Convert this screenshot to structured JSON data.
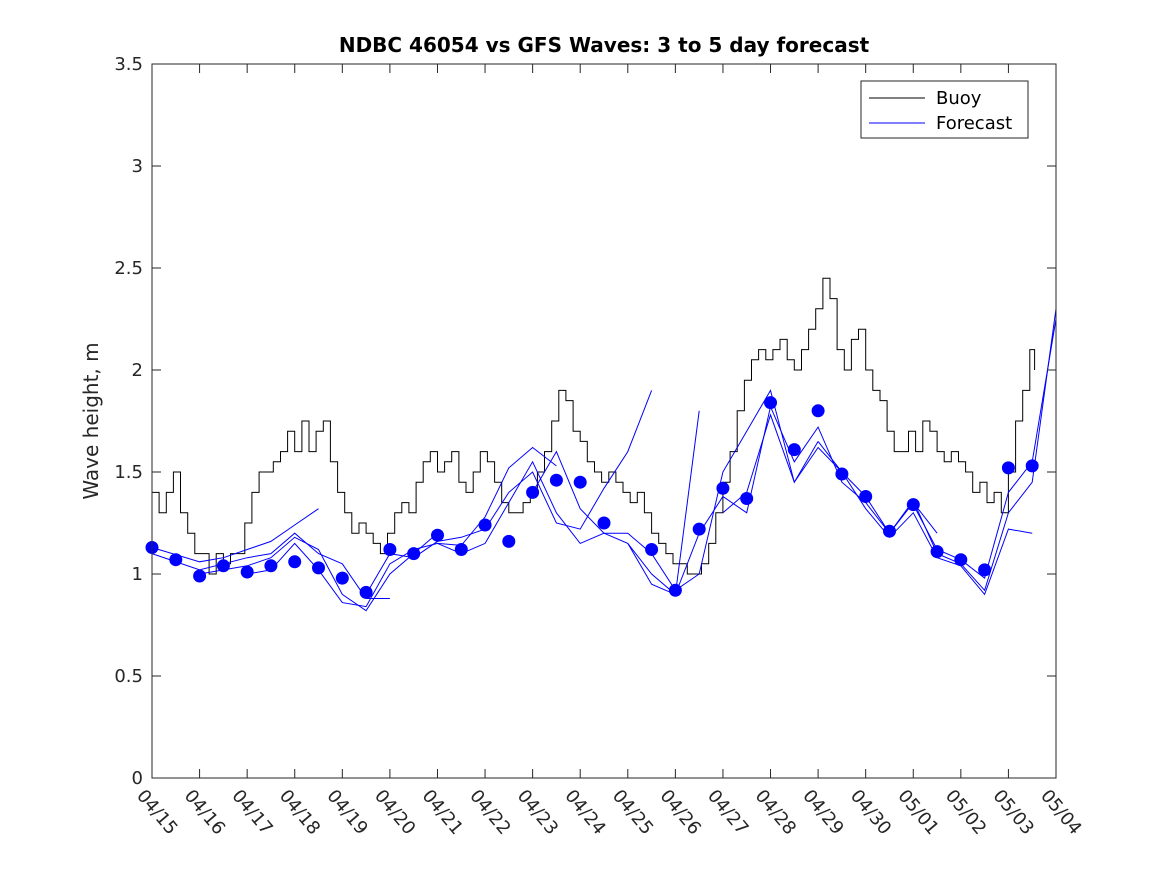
{
  "chart_data": {
    "type": "line",
    "title": "NDBC 46054 vs GFS Waves: 3 to 5 day forecast",
    "xlabel": "",
    "ylabel": "Wave height, m",
    "xlim": [
      "04/15",
      "05/04"
    ],
    "ylim": [
      0,
      3.5
    ],
    "yticks": [
      "0",
      "0.5",
      "1",
      "1.5",
      "2",
      "2.5",
      "3",
      "3.5"
    ],
    "xticks": [
      "04/15",
      "04/16",
      "04/17",
      "04/18",
      "04/19",
      "04/20",
      "04/21",
      "04/22",
      "04/23",
      "04/24",
      "04/25",
      "04/26",
      "04/27",
      "04/28",
      "04/29",
      "04/30",
      "05/01",
      "05/02",
      "05/03",
      "05/04"
    ],
    "grid": false,
    "legend_position": "top-right",
    "legend": [
      {
        "label": "Buoy",
        "color": "#000000"
      },
      {
        "label": "Forecast",
        "color": "#0000ff"
      }
    ],
    "buoy": {
      "name": "Buoy",
      "color": "#000000",
      "points": [
        [
          0.0,
          1.4
        ],
        [
          0.15,
          1.3
        ],
        [
          0.3,
          1.4
        ],
        [
          0.45,
          1.5
        ],
        [
          0.6,
          1.3
        ],
        [
          0.75,
          1.2
        ],
        [
          0.9,
          1.1
        ],
        [
          1.05,
          1.1
        ],
        [
          1.2,
          1.0
        ],
        [
          1.35,
          1.1
        ],
        [
          1.5,
          1.05
        ],
        [
          1.65,
          1.1
        ],
        [
          1.8,
          1.1
        ],
        [
          1.95,
          1.25
        ],
        [
          2.1,
          1.4
        ],
        [
          2.25,
          1.5
        ],
        [
          2.4,
          1.5
        ],
        [
          2.55,
          1.55
        ],
        [
          2.7,
          1.6
        ],
        [
          2.85,
          1.7
        ],
        [
          3.0,
          1.6
        ],
        [
          3.15,
          1.75
        ],
        [
          3.3,
          1.6
        ],
        [
          3.45,
          1.7
        ],
        [
          3.6,
          1.75
        ],
        [
          3.75,
          1.55
        ],
        [
          3.9,
          1.4
        ],
        [
          4.05,
          1.3
        ],
        [
          4.2,
          1.2
        ],
        [
          4.35,
          1.25
        ],
        [
          4.5,
          1.2
        ],
        [
          4.65,
          1.15
        ],
        [
          4.8,
          1.1
        ],
        [
          4.95,
          1.2
        ],
        [
          5.1,
          1.3
        ],
        [
          5.25,
          1.35
        ],
        [
          5.4,
          1.3
        ],
        [
          5.55,
          1.45
        ],
        [
          5.7,
          1.55
        ],
        [
          5.85,
          1.6
        ],
        [
          6.0,
          1.5
        ],
        [
          6.15,
          1.55
        ],
        [
          6.3,
          1.6
        ],
        [
          6.45,
          1.45
        ],
        [
          6.6,
          1.4
        ],
        [
          6.75,
          1.5
        ],
        [
          6.9,
          1.6
        ],
        [
          7.05,
          1.55
        ],
        [
          7.2,
          1.45
        ],
        [
          7.35,
          1.35
        ],
        [
          7.5,
          1.3
        ],
        [
          7.65,
          1.3
        ],
        [
          7.8,
          1.35
        ],
        [
          7.95,
          1.4
        ],
        [
          8.1,
          1.5
        ],
        [
          8.25,
          1.6
        ],
        [
          8.4,
          1.75
        ],
        [
          8.55,
          1.9
        ],
        [
          8.7,
          1.85
        ],
        [
          8.85,
          1.7
        ],
        [
          9.0,
          1.65
        ],
        [
          9.15,
          1.55
        ],
        [
          9.3,
          1.5
        ],
        [
          9.45,
          1.45
        ],
        [
          9.6,
          1.5
        ],
        [
          9.75,
          1.45
        ],
        [
          9.9,
          1.4
        ],
        [
          10.05,
          1.35
        ],
        [
          10.2,
          1.4
        ],
        [
          10.35,
          1.3
        ],
        [
          10.5,
          1.2
        ],
        [
          10.65,
          1.15
        ],
        [
          10.8,
          1.1
        ],
        [
          10.95,
          1.05
        ],
        [
          11.1,
          1.05
        ],
        [
          11.25,
          1.0
        ],
        [
          11.4,
          1.0
        ],
        [
          11.55,
          1.05
        ],
        [
          11.7,
          1.15
        ],
        [
          11.85,
          1.3
        ],
        [
          12.0,
          1.45
        ],
        [
          12.15,
          1.6
        ],
        [
          12.3,
          1.8
        ],
        [
          12.45,
          1.95
        ],
        [
          12.6,
          2.05
        ],
        [
          12.75,
          2.1
        ],
        [
          12.9,
          2.05
        ],
        [
          13.05,
          2.1
        ],
        [
          13.2,
          2.15
        ],
        [
          13.35,
          2.05
        ],
        [
          13.5,
          2.0
        ],
        [
          13.65,
          2.1
        ],
        [
          13.8,
          2.2
        ],
        [
          13.95,
          2.3
        ],
        [
          14.1,
          2.45
        ],
        [
          14.25,
          2.35
        ],
        [
          14.4,
          2.1
        ],
        [
          14.55,
          2.0
        ],
        [
          14.7,
          2.15
        ],
        [
          14.85,
          2.2
        ],
        [
          15.0,
          2.0
        ],
        [
          15.15,
          1.9
        ],
        [
          15.3,
          1.85
        ],
        [
          15.45,
          1.7
        ],
        [
          15.6,
          1.6
        ],
        [
          15.75,
          1.6
        ],
        [
          15.9,
          1.7
        ],
        [
          16.05,
          1.6
        ],
        [
          16.2,
          1.75
        ],
        [
          16.35,
          1.7
        ],
        [
          16.5,
          1.6
        ],
        [
          16.65,
          1.55
        ],
        [
          16.8,
          1.6
        ],
        [
          16.95,
          1.55
        ],
        [
          17.1,
          1.5
        ],
        [
          17.25,
          1.4
        ],
        [
          17.4,
          1.45
        ],
        [
          17.55,
          1.35
        ],
        [
          17.7,
          1.4
        ],
        [
          17.85,
          1.3
        ],
        [
          18.0,
          1.5
        ],
        [
          18.15,
          1.75
        ],
        [
          18.3,
          1.9
        ],
        [
          18.45,
          2.1
        ],
        [
          18.55,
          2.0
        ]
      ]
    },
    "forecast_lines": [
      {
        "name": "Forecast",
        "color": "#0000ff",
        "points": [
          [
            0.0,
            1.13
          ],
          [
            1.0,
            1.06
          ],
          [
            1.5,
            1.08
          ],
          [
            2.0,
            1.12
          ],
          [
            2.5,
            1.16
          ],
          [
            3.0,
            1.24
          ],
          [
            3.5,
            1.32
          ]
        ]
      },
      {
        "name": "Forecast",
        "color": "#0000ff",
        "points": [
          [
            0.0,
            1.1
          ],
          [
            1.0,
            1.02
          ],
          [
            1.5,
            1.05
          ],
          [
            2.0,
            1.08
          ],
          [
            2.5,
            1.1
          ],
          [
            3.0,
            1.2
          ],
          [
            3.5,
            1.1
          ],
          [
            4.0,
            1.05
          ],
          [
            4.5,
            0.88
          ],
          [
            5.0,
            0.88
          ]
        ]
      },
      {
        "name": "Forecast",
        "color": "#0000ff",
        "points": [
          [
            1.0,
            1.0
          ],
          [
            1.5,
            1.02
          ],
          [
            2.0,
            1.04
          ],
          [
            2.5,
            1.08
          ],
          [
            3.0,
            1.18
          ],
          [
            3.5,
            1.12
          ],
          [
            4.0,
            0.9
          ],
          [
            4.5,
            0.82
          ],
          [
            5.0,
            1.0
          ],
          [
            5.5,
            1.1
          ],
          [
            6.0,
            1.2
          ]
        ]
      },
      {
        "name": "Forecast",
        "color": "#0000ff",
        "points": [
          [
            2.0,
            1.0
          ],
          [
            2.5,
            1.02
          ],
          [
            3.0,
            1.15
          ],
          [
            3.5,
            1.02
          ],
          [
            4.0,
            0.86
          ],
          [
            4.5,
            0.84
          ],
          [
            5.0,
            1.05
          ],
          [
            5.5,
            1.12
          ],
          [
            6.0,
            1.15
          ],
          [
            6.5,
            1.14
          ],
          [
            7.0,
            1.28
          ],
          [
            7.5,
            1.52
          ],
          [
            8.0,
            1.62
          ],
          [
            8.5,
            1.53
          ]
        ]
      },
      {
        "name": "Forecast",
        "color": "#0000ff",
        "points": [
          [
            4.5,
            0.9
          ],
          [
            5.0,
            1.1
          ],
          [
            5.5,
            1.08
          ],
          [
            6.0,
            1.16
          ],
          [
            6.5,
            1.18
          ],
          [
            7.0,
            1.22
          ],
          [
            7.5,
            1.4
          ],
          [
            8.0,
            1.5
          ],
          [
            8.5,
            1.25
          ],
          [
            9.0,
            1.22
          ],
          [
            9.5,
            1.42
          ],
          [
            10.0,
            1.6
          ],
          [
            10.5,
            1.9
          ]
        ]
      },
      {
        "name": "Forecast",
        "color": "#0000ff",
        "points": [
          [
            6.0,
            1.15
          ],
          [
            6.5,
            1.1
          ],
          [
            7.0,
            1.15
          ],
          [
            7.5,
            1.35
          ],
          [
            8.0,
            1.55
          ],
          [
            8.5,
            1.3
          ],
          [
            9.0,
            1.15
          ],
          [
            9.5,
            1.2
          ],
          [
            10.0,
            1.15
          ],
          [
            10.5,
            0.95
          ],
          [
            11.0,
            0.9
          ],
          [
            11.5,
            1.8
          ]
        ]
      },
      {
        "name": "Forecast",
        "color": "#0000ff",
        "points": [
          [
            8.0,
            1.4
          ],
          [
            8.5,
            1.6
          ],
          [
            9.0,
            1.32
          ],
          [
            9.5,
            1.2
          ],
          [
            10.0,
            1.2
          ],
          [
            10.5,
            1.1
          ],
          [
            11.0,
            0.92
          ],
          [
            11.5,
            1.0
          ],
          [
            12.0,
            1.5
          ],
          [
            12.5,
            1.7
          ],
          [
            13.0,
            1.9
          ],
          [
            13.5,
            1.45
          ],
          [
            14.0,
            1.65
          ]
        ]
      },
      {
        "name": "Forecast",
        "color": "#0000ff",
        "points": [
          [
            10.0,
            1.15
          ],
          [
            10.5,
            1.0
          ],
          [
            11.0,
            0.9
          ],
          [
            11.5,
            1.2
          ],
          [
            12.0,
            1.38
          ],
          [
            12.5,
            1.3
          ],
          [
            13.0,
            1.82
          ],
          [
            13.5,
            1.55
          ],
          [
            14.0,
            1.72
          ],
          [
            14.5,
            1.45
          ],
          [
            15.0,
            1.35
          ],
          [
            15.5,
            1.2
          ],
          [
            16.0,
            1.35
          ],
          [
            16.5,
            1.2
          ]
        ]
      },
      {
        "name": "Forecast",
        "color": "#0000ff",
        "points": [
          [
            12.0,
            1.3
          ],
          [
            12.5,
            1.4
          ],
          [
            13.0,
            1.78
          ],
          [
            13.5,
            1.45
          ],
          [
            14.0,
            1.62
          ],
          [
            14.5,
            1.5
          ],
          [
            15.0,
            1.32
          ],
          [
            15.5,
            1.18
          ],
          [
            16.0,
            1.3
          ],
          [
            16.5,
            1.08
          ],
          [
            17.0,
            1.04
          ],
          [
            17.5,
            0.9
          ],
          [
            18.0,
            1.22
          ],
          [
            18.5,
            1.2
          ]
        ]
      },
      {
        "name": "Forecast",
        "color": "#0000ff",
        "points": [
          [
            14.0,
            1.65
          ],
          [
            14.5,
            1.5
          ],
          [
            15.0,
            1.38
          ],
          [
            15.5,
            1.2
          ],
          [
            16.0,
            1.36
          ],
          [
            16.5,
            1.1
          ],
          [
            17.0,
            1.05
          ],
          [
            17.5,
            0.92
          ],
          [
            18.0,
            1.3
          ],
          [
            18.5,
            1.45
          ],
          [
            19.0,
            2.3
          ]
        ]
      },
      {
        "name": "Forecast",
        "color": "#0000ff",
        "points": [
          [
            16.0,
            1.34
          ],
          [
            16.5,
            1.12
          ],
          [
            17.0,
            1.07
          ],
          [
            17.5,
            0.98
          ],
          [
            18.0,
            1.4
          ],
          [
            18.5,
            1.55
          ],
          [
            19.0,
            2.25
          ]
        ]
      }
    ],
    "forecast_points": {
      "name": "Forecast",
      "color": "#0000ff",
      "points": [
        [
          0.0,
          1.13
        ],
        [
          0.5,
          1.07
        ],
        [
          1.0,
          0.99
        ],
        [
          1.5,
          1.04
        ],
        [
          2.0,
          1.01
        ],
        [
          2.5,
          1.04
        ],
        [
          3.0,
          1.06
        ],
        [
          3.5,
          1.03
        ],
        [
          4.0,
          0.98
        ],
        [
          4.5,
          0.91
        ],
        [
          5.0,
          1.12
        ],
        [
          5.5,
          1.1
        ],
        [
          6.0,
          1.19
        ],
        [
          6.5,
          1.12
        ],
        [
          7.0,
          1.24
        ],
        [
          7.5,
          1.16
        ],
        [
          8.0,
          1.4
        ],
        [
          8.5,
          1.46
        ],
        [
          9.0,
          1.45
        ],
        [
          9.5,
          1.25
        ],
        [
          10.5,
          1.12
        ],
        [
          11.0,
          0.92
        ],
        [
          11.5,
          1.22
        ],
        [
          12.0,
          1.42
        ],
        [
          12.5,
          1.37
        ],
        [
          13.0,
          1.84
        ],
        [
          13.5,
          1.61
        ],
        [
          14.0,
          1.8
        ],
        [
          14.5,
          1.49
        ],
        [
          15.0,
          1.38
        ],
        [
          15.5,
          1.21
        ],
        [
          16.0,
          1.34
        ],
        [
          16.5,
          1.11
        ],
        [
          17.0,
          1.07
        ],
        [
          17.5,
          1.02
        ],
        [
          18.0,
          1.52
        ],
        [
          18.5,
          1.53
        ]
      ]
    }
  }
}
